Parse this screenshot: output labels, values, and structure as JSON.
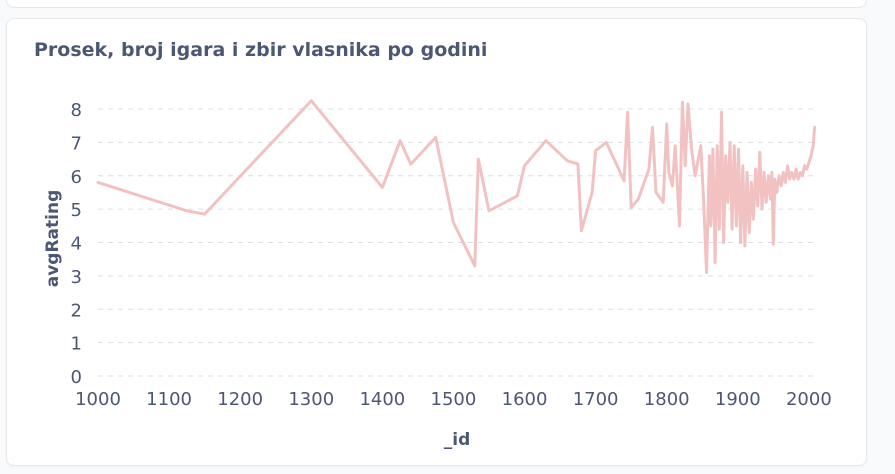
{
  "card": {
    "title": "Prosek, broj igara i zbir vlasnika po godini"
  },
  "colors": {
    "line": "#f2c2c2",
    "grid": "#dcdfe4",
    "text": "#4c5773"
  },
  "chart_data": {
    "type": "line",
    "title": "Prosek, broj igara i zbir vlasnika po godini",
    "xlabel": "_id",
    "ylabel": "avgRating",
    "xlim": [
      1000,
      2010
    ],
    "ylim": [
      0,
      8
    ],
    "x_ticks": [
      1000,
      1100,
      1200,
      1300,
      1400,
      1500,
      1600,
      1700,
      1800,
      1900,
      2000
    ],
    "y_ticks": [
      0,
      1,
      2,
      3,
      4,
      5,
      6,
      7,
      8
    ],
    "grid": "horizontal dashed",
    "series": [
      {
        "points": [
          [
            1000,
            5.8
          ],
          [
            1125,
            4.95
          ],
          [
            1150,
            4.85
          ],
          [
            1300,
            8.25
          ],
          [
            1400,
            5.65
          ],
          [
            1425,
            7.05
          ],
          [
            1440,
            6.35
          ],
          [
            1475,
            7.15
          ],
          [
            1500,
            4.6
          ],
          [
            1530,
            3.3
          ],
          [
            1535,
            6.5
          ],
          [
            1550,
            4.95
          ],
          [
            1590,
            5.4
          ],
          [
            1600,
            6.3
          ],
          [
            1630,
            7.05
          ],
          [
            1660,
            6.45
          ],
          [
            1675,
            6.35
          ],
          [
            1680,
            4.35
          ],
          [
            1695,
            5.5
          ],
          [
            1700,
            6.75
          ],
          [
            1715,
            7.0
          ],
          [
            1740,
            5.85
          ],
          [
            1745,
            7.9
          ],
          [
            1750,
            5.05
          ],
          [
            1760,
            5.3
          ],
          [
            1775,
            6.2
          ],
          [
            1780,
            7.45
          ],
          [
            1785,
            5.5
          ],
          [
            1795,
            5.2
          ],
          [
            1800,
            7.55
          ],
          [
            1803,
            6.1
          ],
          [
            1808,
            5.7
          ],
          [
            1812,
            6.9
          ],
          [
            1818,
            4.5
          ],
          [
            1822,
            8.2
          ],
          [
            1826,
            6.3
          ],
          [
            1830,
            8.15
          ],
          [
            1835,
            6.8
          ],
          [
            1840,
            6.0
          ],
          [
            1848,
            6.9
          ],
          [
            1852,
            5.2
          ],
          [
            1856,
            3.1
          ],
          [
            1860,
            6.6
          ],
          [
            1862,
            4.5
          ],
          [
            1865,
            6.8
          ],
          [
            1868,
            3.4
          ],
          [
            1871,
            6.9
          ],
          [
            1874,
            4.4
          ],
          [
            1877,
            7.9
          ],
          [
            1880,
            4.0
          ],
          [
            1883,
            6.6
          ],
          [
            1886,
            5.2
          ],
          [
            1889,
            7.0
          ],
          [
            1892,
            4.4
          ],
          [
            1895,
            6.9
          ],
          [
            1898,
            4.5
          ],
          [
            1901,
            6.8
          ],
          [
            1904,
            4.0
          ],
          [
            1907,
            6.3
          ],
          [
            1910,
            3.9
          ],
          [
            1913,
            6.1
          ],
          [
            1916,
            4.3
          ],
          [
            1919,
            5.8
          ],
          [
            1922,
            4.7
          ],
          [
            1925,
            6.2
          ],
          [
            1928,
            5.1
          ],
          [
            1931,
            6.7
          ],
          [
            1934,
            5.0
          ],
          [
            1937,
            6.1
          ],
          [
            1940,
            5.2
          ],
          [
            1943,
            6.0
          ],
          [
            1946,
            5.3
          ],
          [
            1948,
            6.1
          ],
          [
            1950,
            3.95
          ],
          [
            1952,
            5.9
          ],
          [
            1955,
            5.5
          ],
          [
            1958,
            6.0
          ],
          [
            1961,
            5.7
          ],
          [
            1964,
            6.1
          ],
          [
            1967,
            5.8
          ],
          [
            1970,
            6.3
          ],
          [
            1973,
            5.9
          ],
          [
            1976,
            6.1
          ],
          [
            1979,
            5.9
          ],
          [
            1982,
            6.2
          ],
          [
            1985,
            5.9
          ],
          [
            1988,
            6.1
          ],
          [
            1991,
            6.0
          ],
          [
            1994,
            6.3
          ],
          [
            1997,
            6.2
          ],
          [
            2000,
            6.4
          ],
          [
            2003,
            6.6
          ],
          [
            2006,
            6.9
          ],
          [
            2008,
            7.45
          ]
        ]
      }
    ]
  }
}
